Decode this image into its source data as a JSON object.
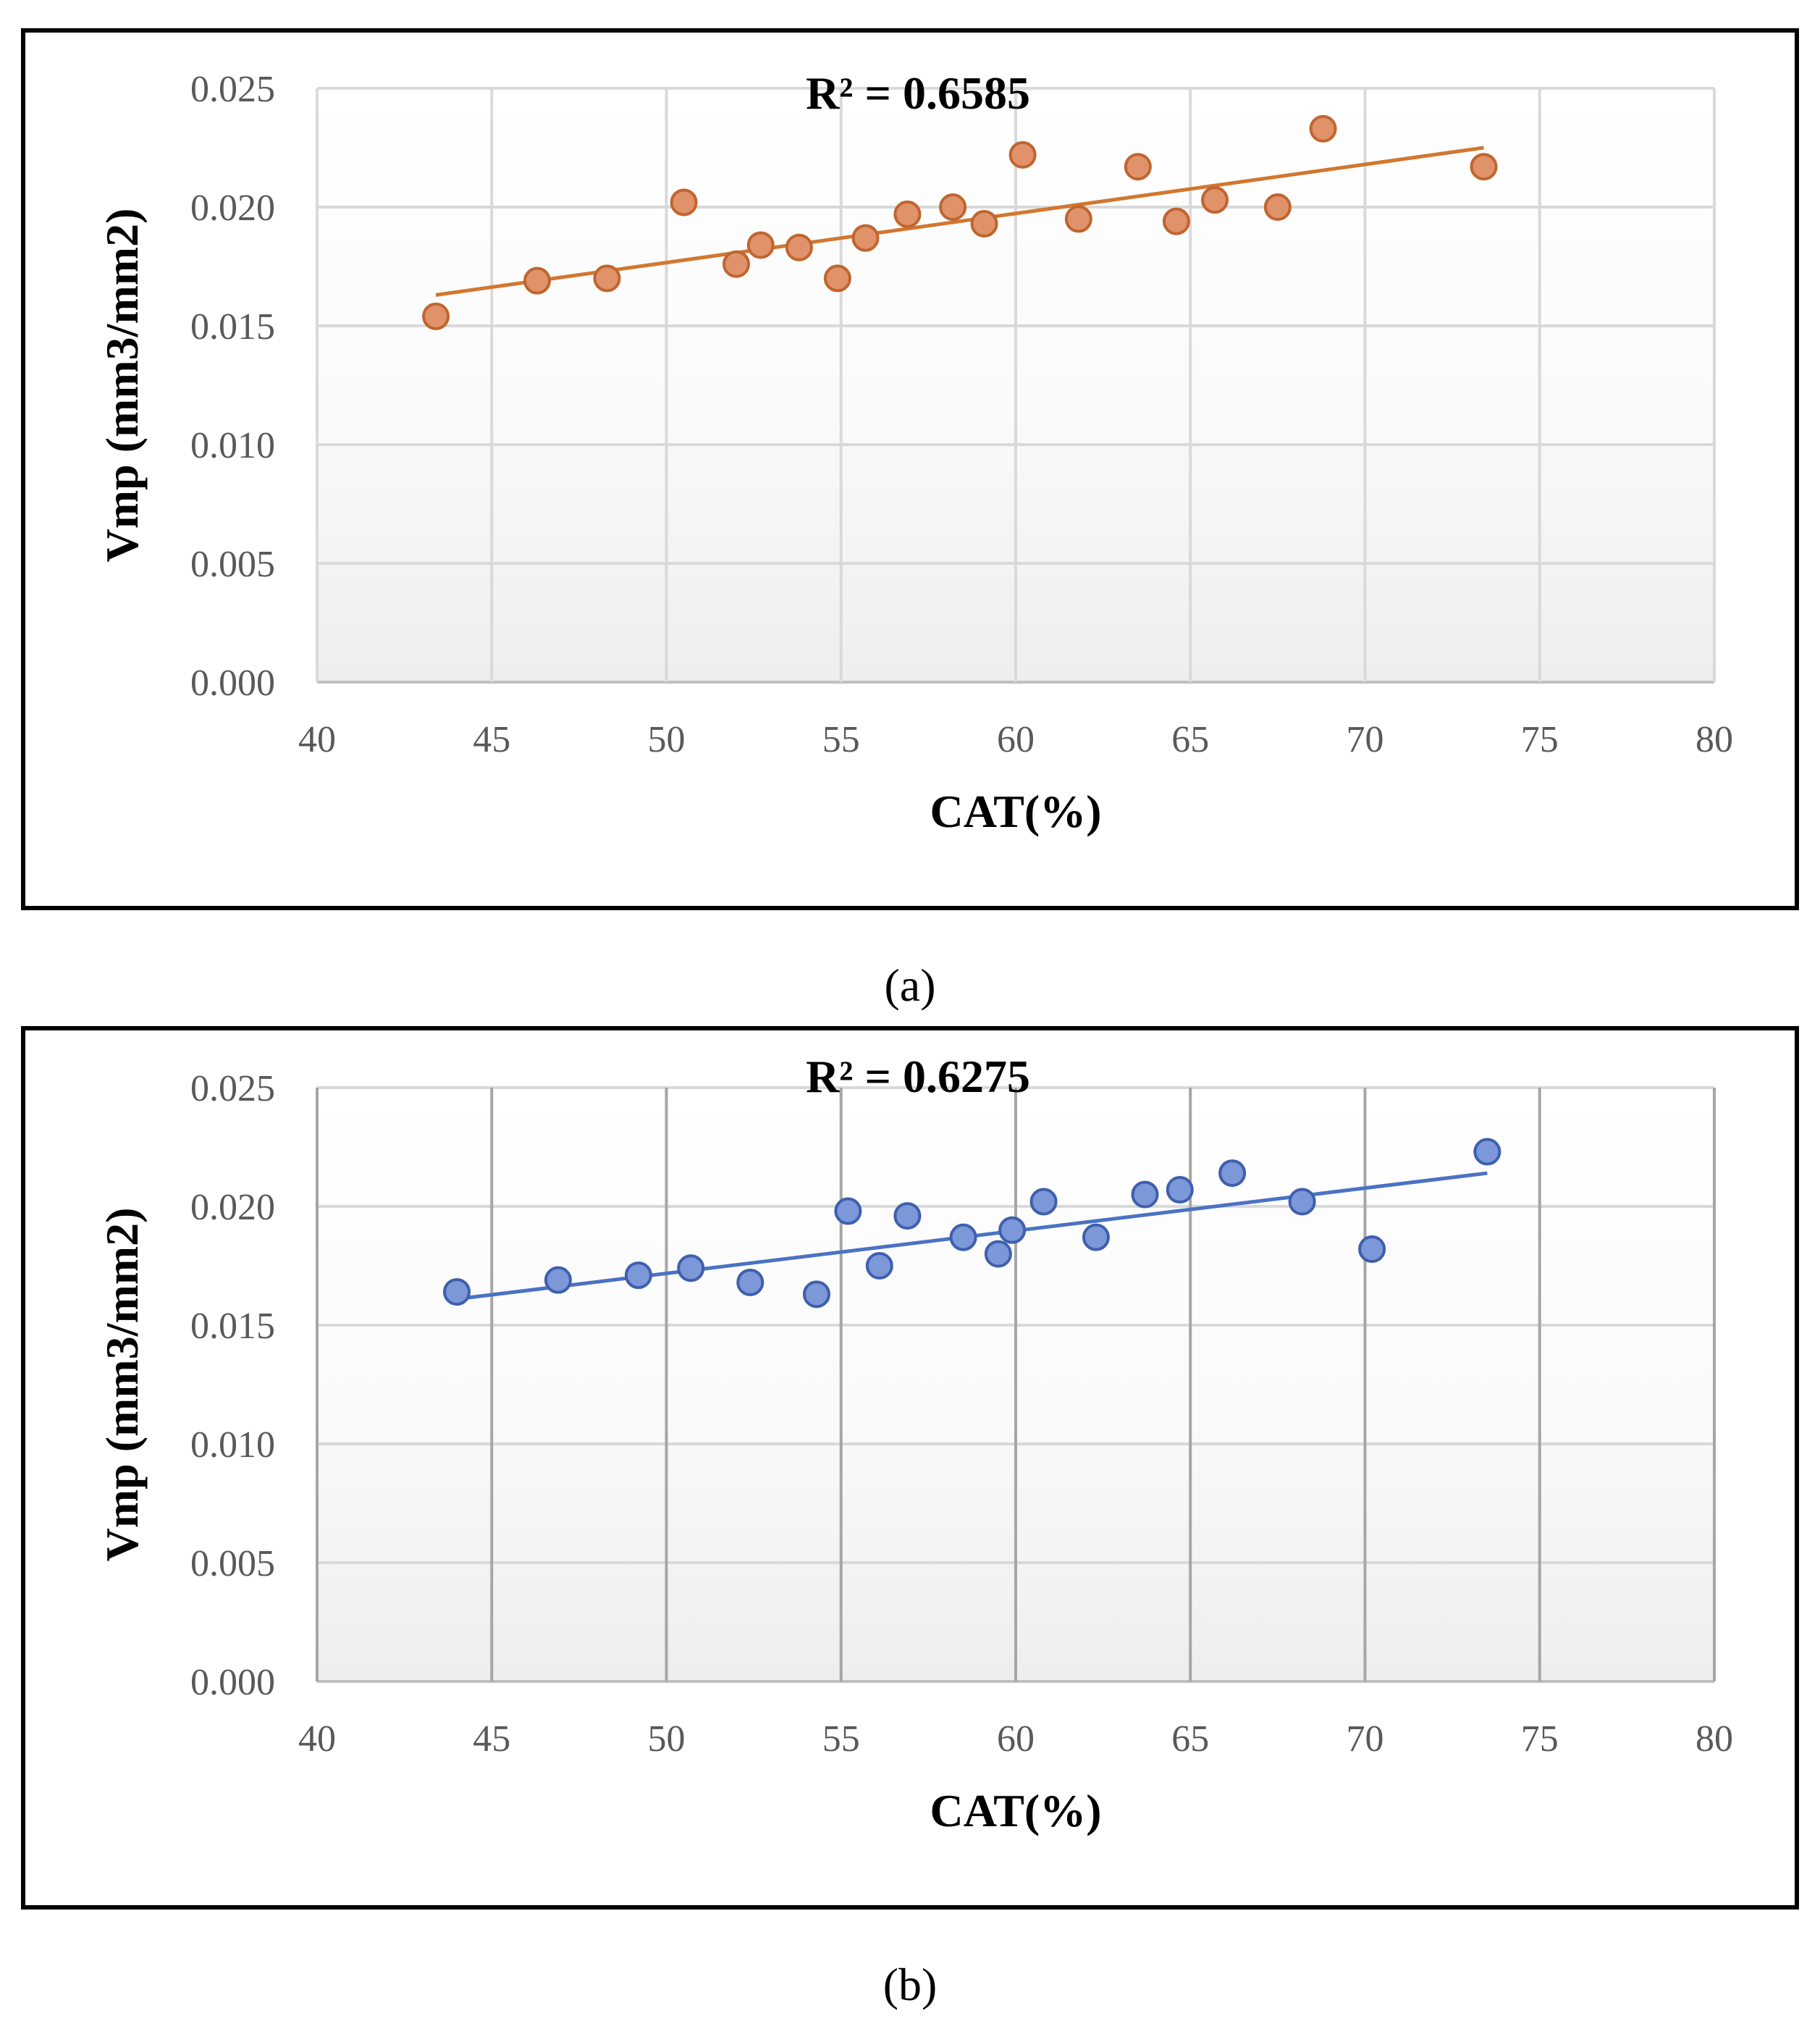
{
  "chart_data": [
    {
      "type": "scatter",
      "panel": "a",
      "caption": "(a)",
      "annotation": "R² = 0.6585",
      "xlabel": "CAT(%)",
      "ylabel": "Vmp (mm3/mm2)",
      "xlim": [
        40,
        80
      ],
      "ylim": [
        0.0,
        0.025
      ],
      "xticks": [
        "40",
        "45",
        "50",
        "55",
        "60",
        "65",
        "70",
        "75",
        "80"
      ],
      "yticks": [
        "0.000",
        "0.005",
        "0.010",
        "0.015",
        "0.020",
        "0.025"
      ],
      "grid": true,
      "marker_color": "#E0926A",
      "marker_edge": "#C0652F",
      "trend_color": "#D2772F",
      "points": [
        {
          "x": 43.4,
          "y": 0.0154
        },
        {
          "x": 46.3,
          "y": 0.0169
        },
        {
          "x": 48.3,
          "y": 0.017
        },
        {
          "x": 50.5,
          "y": 0.0202
        },
        {
          "x": 52.0,
          "y": 0.0176
        },
        {
          "x": 52.7,
          "y": 0.0184
        },
        {
          "x": 53.8,
          "y": 0.0183
        },
        {
          "x": 54.9,
          "y": 0.017
        },
        {
          "x": 55.7,
          "y": 0.0187
        },
        {
          "x": 56.9,
          "y": 0.0197
        },
        {
          "x": 58.2,
          "y": 0.02
        },
        {
          "x": 59.1,
          "y": 0.0193
        },
        {
          "x": 60.2,
          "y": 0.0222
        },
        {
          "x": 61.8,
          "y": 0.0195
        },
        {
          "x": 63.5,
          "y": 0.0217
        },
        {
          "x": 64.6,
          "y": 0.0194
        },
        {
          "x": 65.7,
          "y": 0.0203
        },
        {
          "x": 67.5,
          "y": 0.02
        },
        {
          "x": 68.8,
          "y": 0.0233
        },
        {
          "x": 73.4,
          "y": 0.0217
        }
      ],
      "trendline": {
        "x": [
          43.4,
          73.4
        ],
        "y": [
          0.0163,
          0.0225
        ]
      }
    },
    {
      "type": "scatter",
      "panel": "b",
      "caption": "(b)",
      "annotation": "R² = 0.6275",
      "xlabel": "CAT(%)",
      "ylabel": "Vmp (mm3/mm2)",
      "xlim": [
        40,
        80
      ],
      "ylim": [
        0.0,
        0.025
      ],
      "xticks": [
        "40",
        "45",
        "50",
        "55",
        "60",
        "65",
        "70",
        "75",
        "80"
      ],
      "yticks": [
        "0.000",
        "0.005",
        "0.010",
        "0.015",
        "0.020",
        "0.025"
      ],
      "grid": true,
      "marker_color": "#7C98D8",
      "marker_edge": "#3F5FAE",
      "trend_color": "#4A72C4",
      "points": [
        {
          "x": 44.0,
          "y": 0.0164
        },
        {
          "x": 46.9,
          "y": 0.0169
        },
        {
          "x": 49.2,
          "y": 0.0171
        },
        {
          "x": 50.7,
          "y": 0.0174
        },
        {
          "x": 52.4,
          "y": 0.0168
        },
        {
          "x": 54.3,
          "y": 0.0163
        },
        {
          "x": 55.2,
          "y": 0.0198
        },
        {
          "x": 56.1,
          "y": 0.0175
        },
        {
          "x": 56.9,
          "y": 0.0196
        },
        {
          "x": 58.5,
          "y": 0.0187
        },
        {
          "x": 59.5,
          "y": 0.018
        },
        {
          "x": 59.9,
          "y": 0.019
        },
        {
          "x": 60.8,
          "y": 0.0202
        },
        {
          "x": 62.3,
          "y": 0.0187
        },
        {
          "x": 63.7,
          "y": 0.0205
        },
        {
          "x": 64.7,
          "y": 0.0207
        },
        {
          "x": 66.2,
          "y": 0.0214
        },
        {
          "x": 68.2,
          "y": 0.0202
        },
        {
          "x": 70.2,
          "y": 0.0182
        },
        {
          "x": 73.5,
          "y": 0.0223
        }
      ],
      "trendline": {
        "x": [
          44.0,
          73.5
        ],
        "y": [
          0.0161,
          0.0214
        ]
      }
    }
  ]
}
